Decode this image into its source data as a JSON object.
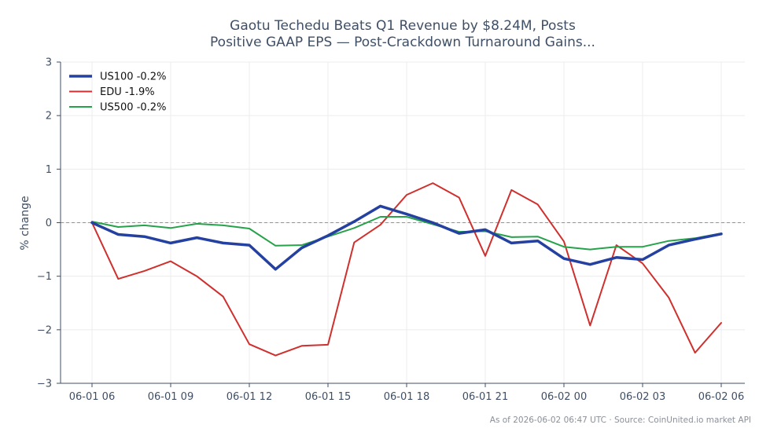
{
  "chart_data": {
    "type": "line",
    "title_lines": [
      "Gaotu Techedu Beats Q1 Revenue by $8.24M, Posts",
      "Positive GAAP EPS — Post-Crackdown Turnaround Gains..."
    ],
    "ylabel": "% change",
    "xlabel": "",
    "x_tick_labels": [
      "06-01 06",
      "06-01 09",
      "06-01 12",
      "06-01 15",
      "06-01 18",
      "06-01 21",
      "06-02 00",
      "06-02 03",
      "06-02 06"
    ],
    "y_tick_labels": [
      "3",
      "2",
      "1",
      "0",
      "−1",
      "−2",
      "−3"
    ],
    "ylim": [
      -3,
      3
    ],
    "xlim_hours": [
      -1.2,
      24.9
    ],
    "x_hours": [
      0,
      1,
      2,
      3,
      4,
      5,
      6,
      7,
      8,
      9,
      10,
      11,
      12,
      13,
      14,
      15,
      16,
      17,
      18,
      19,
      20,
      21,
      22,
      23,
      24
    ],
    "grid": true,
    "reference_line": 0,
    "legend_position": "top-left",
    "series": [
      {
        "name": "US100 -0.2%",
        "color": "#2440a0",
        "width": 3.5,
        "values": [
          0.0,
          -0.22,
          -0.26,
          -0.38,
          -0.28,
          -0.38,
          -0.42,
          -0.87,
          -0.47,
          -0.24,
          0.02,
          0.31,
          0.16,
          0.0,
          -0.2,
          -0.13,
          -0.38,
          -0.34,
          -0.67,
          -0.78,
          -0.65,
          -0.69,
          -0.42,
          -0.31,
          -0.21
        ]
      },
      {
        "name": "EDU -1.9%",
        "color": "#d0302d",
        "width": 2,
        "values": [
          0.0,
          -1.05,
          -0.9,
          -0.72,
          -1.0,
          -1.38,
          -2.27,
          -2.48,
          -2.3,
          -2.28,
          -0.37,
          -0.04,
          0.52,
          0.74,
          0.47,
          -0.62,
          0.61,
          0.34,
          -0.35,
          -1.92,
          -0.42,
          -0.76,
          -1.4,
          -2.43,
          -1.87
        ]
      },
      {
        "name": "US500 -0.2%",
        "color": "#25a24a",
        "width": 2,
        "values": [
          0.02,
          -0.08,
          -0.05,
          -0.1,
          -0.02,
          -0.05,
          -0.11,
          -0.43,
          -0.42,
          -0.26,
          -0.1,
          0.11,
          0.11,
          -0.03,
          -0.17,
          -0.16,
          -0.27,
          -0.26,
          -0.45,
          -0.5,
          -0.45,
          -0.45,
          -0.34,
          -0.29,
          -0.2
        ]
      }
    ],
    "footnote": "As of 2026-06-02 06:47 UTC · Source: CoinUnited.io market API",
    "colors": {
      "axis": "#3f4f66",
      "grid": "#ececec",
      "zero_line": "#8795a8",
      "text": "#3f4f66"
    }
  }
}
